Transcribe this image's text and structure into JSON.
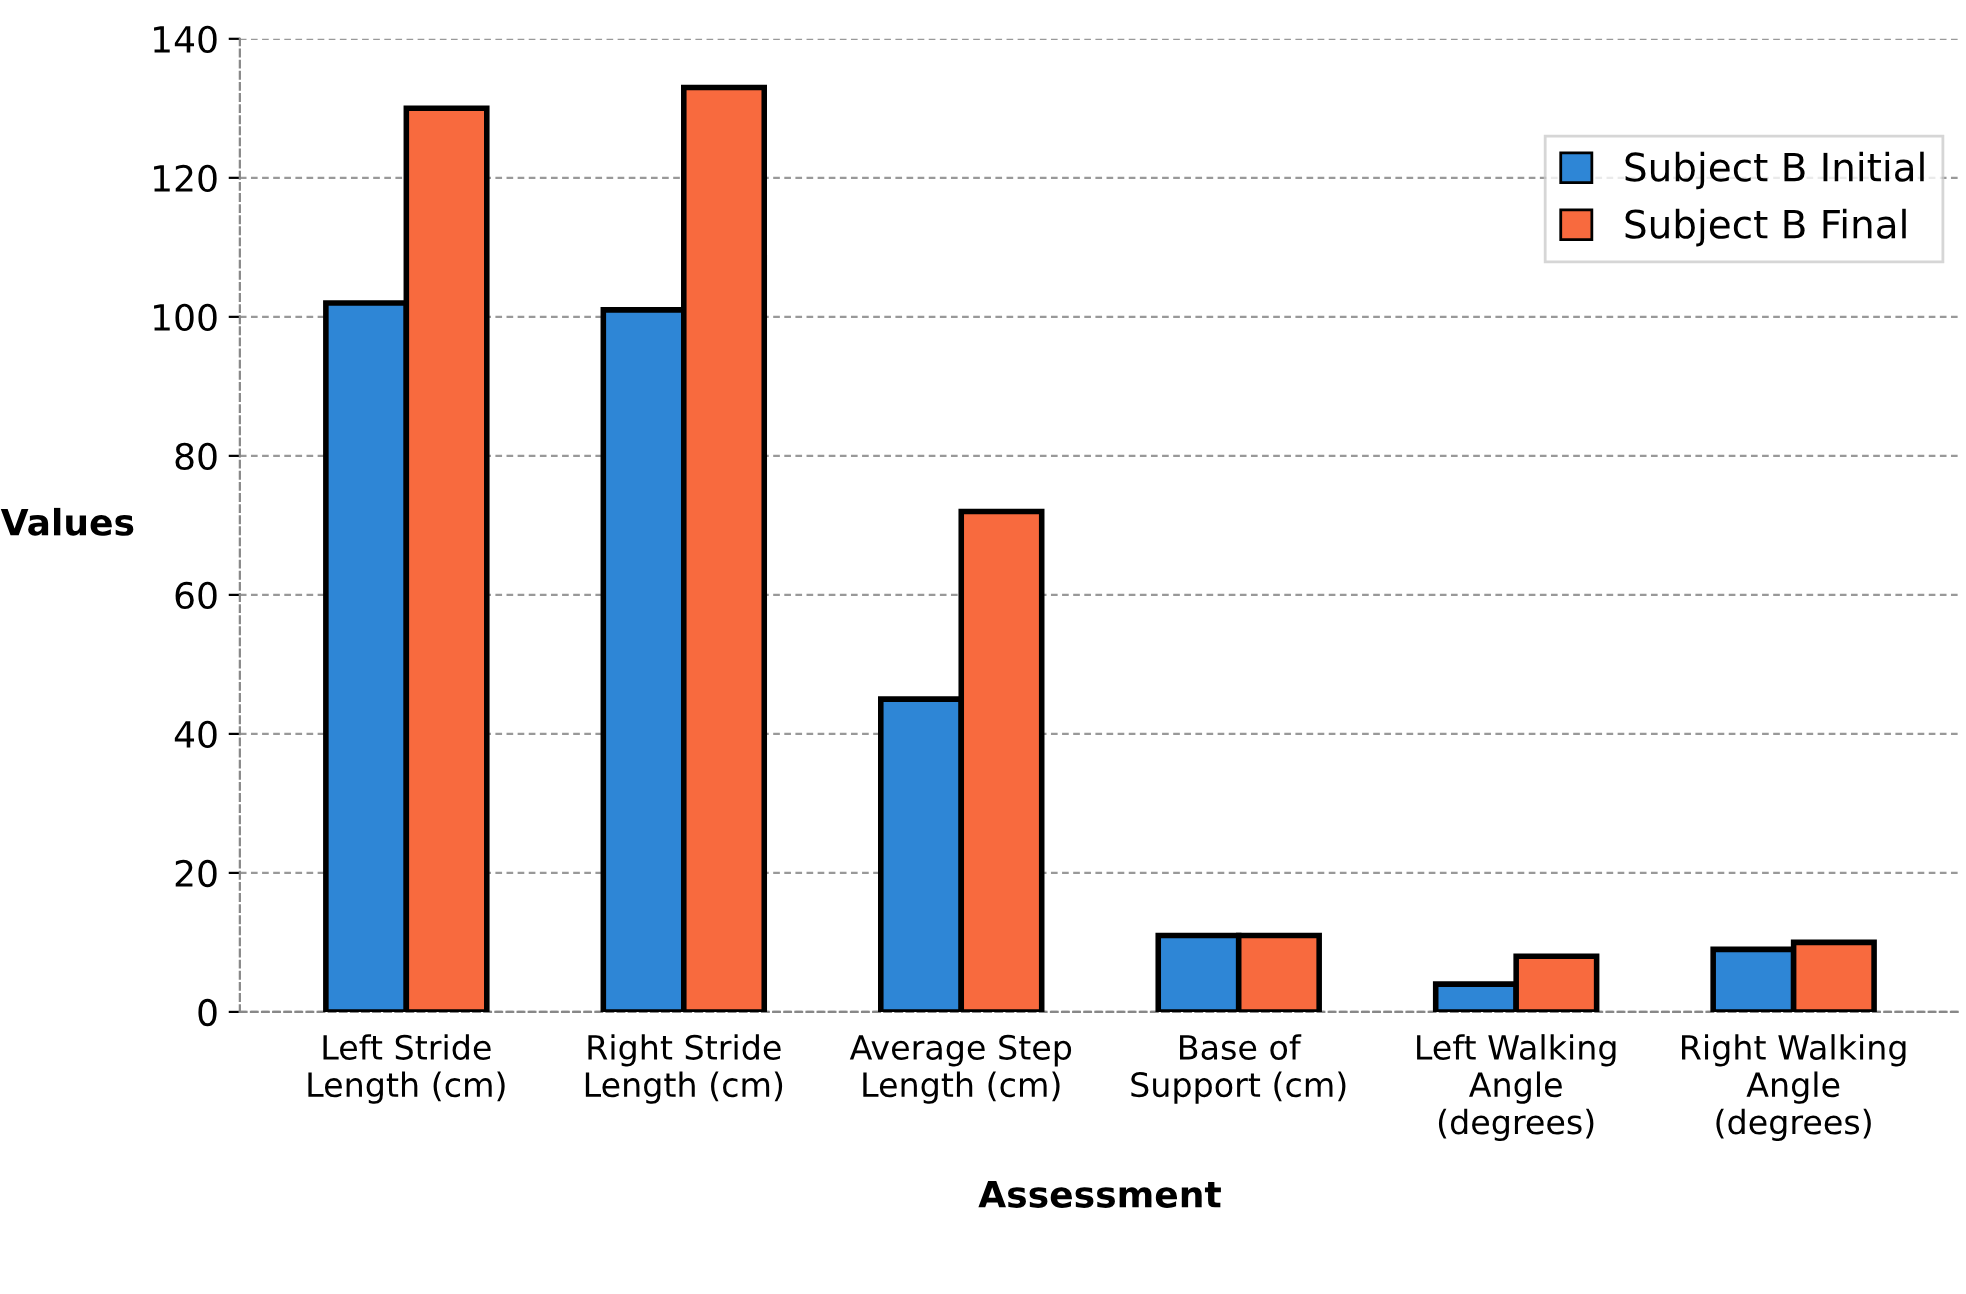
{
  "chart_data": {
    "type": "bar",
    "xlabel": "Assessment",
    "ylabel": "Values",
    "categories": [
      "Left Stride\nLength (cm)",
      "Right Stride\nLength (cm)",
      "Average Step\nLength (cm)",
      "Base of\nSupport (cm)",
      "Left Walking\nAngle\n(degrees)",
      "Right Walking\nAngle\n(degrees)"
    ],
    "series": [
      {
        "name": "Subject B Initial",
        "color": "#2e86d6",
        "values": [
          102,
          101,
          45,
          11,
          4,
          9
        ]
      },
      {
        "name": "Subject B Final",
        "color": "#f86a3e",
        "values": [
          130,
          133,
          72,
          11,
          8,
          10
        ]
      }
    ],
    "ylim": [
      0,
      140
    ],
    "yticks": [
      0,
      20,
      40,
      60,
      80,
      100,
      120,
      140
    ],
    "grid": "y",
    "legend": "top right"
  }
}
